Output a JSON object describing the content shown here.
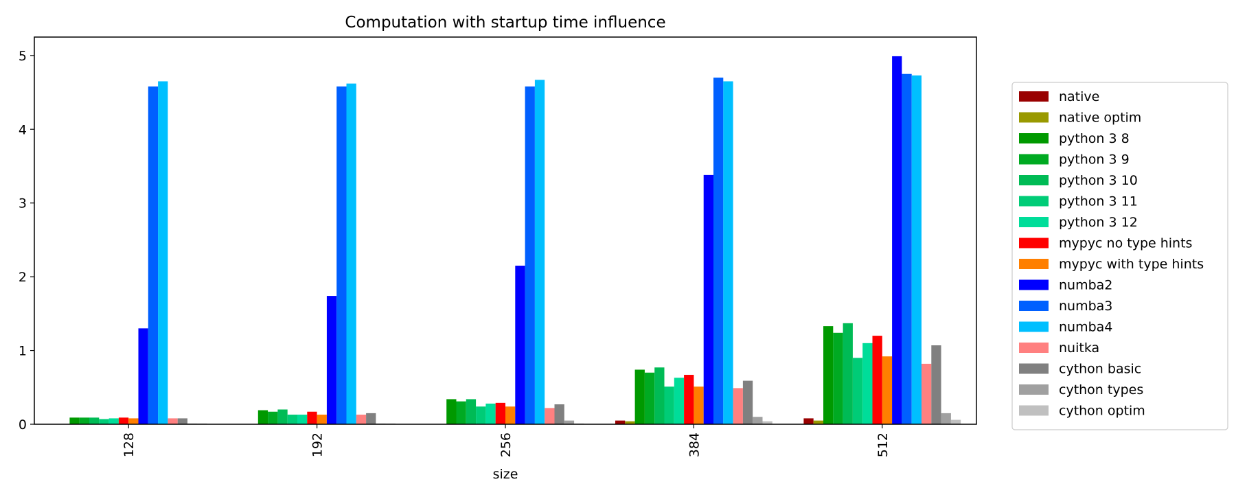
{
  "chart_data": {
    "type": "bar",
    "title": "Computation with startup time influence",
    "xlabel": "size",
    "ylabel": "",
    "categories": [
      "128",
      "192",
      "256",
      "384",
      "512"
    ],
    "ylim": [
      0,
      5.25
    ],
    "yticks": [
      0,
      1,
      2,
      3,
      4,
      5
    ],
    "grid": false,
    "legend_position": "right",
    "series": [
      {
        "name": "native",
        "color": "#990000",
        "values": [
          0.002,
          0.003,
          0.004,
          0.05,
          0.08
        ]
      },
      {
        "name": "native optim",
        "color": "#999900",
        "values": [
          0.002,
          0.002,
          0.003,
          0.04,
          0.05
        ]
      },
      {
        "name": "python 3 8",
        "color": "#009900",
        "values": [
          0.09,
          0.19,
          0.34,
          0.74,
          1.33
        ]
      },
      {
        "name": "python 3 9",
        "color": "#00AA22",
        "values": [
          0.09,
          0.17,
          0.31,
          0.7,
          1.24
        ]
      },
      {
        "name": "python 3 10",
        "color": "#00BB55",
        "values": [
          0.09,
          0.2,
          0.34,
          0.77,
          1.37
        ]
      },
      {
        "name": "python 3 11",
        "color": "#00CC77",
        "values": [
          0.07,
          0.13,
          0.24,
          0.51,
          0.9
        ]
      },
      {
        "name": "python 3 12",
        "color": "#00DD99",
        "values": [
          0.08,
          0.13,
          0.28,
          0.63,
          1.1
        ]
      },
      {
        "name": "mypyc no type hints",
        "color": "#FF0000",
        "values": [
          0.09,
          0.17,
          0.29,
          0.67,
          1.2
        ]
      },
      {
        "name": "mypyc with type hints",
        "color": "#FF7F00",
        "values": [
          0.08,
          0.13,
          0.24,
          0.51,
          0.92
        ]
      },
      {
        "name": "numba2",
        "color": "#0000FF",
        "values": [
          1.3,
          1.74,
          2.15,
          3.38,
          4.99
        ]
      },
      {
        "name": "numba3",
        "color": "#0060FF",
        "values": [
          4.58,
          4.58,
          4.58,
          4.7,
          4.75
        ]
      },
      {
        "name": "numba4",
        "color": "#00BFFF",
        "values": [
          4.65,
          4.62,
          4.67,
          4.65,
          4.73
        ]
      },
      {
        "name": "nuitka",
        "color": "#FF8080",
        "values": [
          0.08,
          0.13,
          0.22,
          0.49,
          0.82
        ]
      },
      {
        "name": "cython basic",
        "color": "#808080",
        "values": [
          0.08,
          0.15,
          0.27,
          0.59,
          1.07
        ]
      },
      {
        "name": "cython types",
        "color": "#A0A0A0",
        "values": [
          0.01,
          0.01,
          0.05,
          0.1,
          0.15
        ]
      },
      {
        "name": "cython optim",
        "color": "#C0C0C0",
        "values": [
          0.01,
          0.01,
          0.01,
          0.04,
          0.06
        ]
      }
    ]
  }
}
